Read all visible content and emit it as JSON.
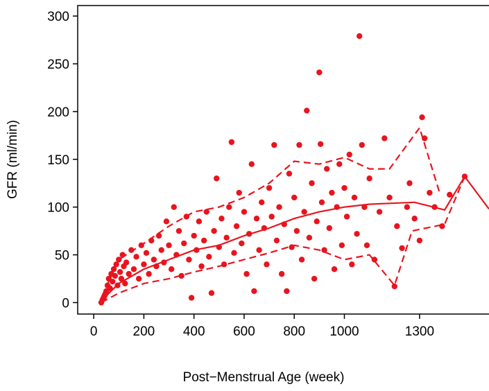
{
  "chart_data": {
    "type": "scatter",
    "xlabel": "Post−Menstrual Age (week)",
    "ylabel": "GFR (ml/min)",
    "color": "#e8141e",
    "xlim": [
      -64,
      1577
    ],
    "ylim": [
      -12,
      311
    ],
    "xticks": [
      0,
      200,
      400,
      600,
      800,
      1000,
      1300
    ],
    "yticks": [
      0,
      50,
      100,
      150,
      200,
      250,
      300
    ],
    "points": {
      "x": [
        30,
        35,
        40,
        45,
        50,
        55,
        60,
        65,
        70,
        75,
        80,
        85,
        90,
        95,
        100,
        105,
        110,
        115,
        120,
        125,
        130,
        140,
        150,
        160,
        170,
        180,
        190,
        200,
        210,
        220,
        230,
        240,
        250,
        260,
        270,
        280,
        290,
        300,
        310,
        320,
        330,
        340,
        350,
        360,
        370,
        380,
        390,
        400,
        410,
        420,
        430,
        440,
        450,
        460,
        470,
        480,
        490,
        500,
        510,
        520,
        530,
        540,
        550,
        560,
        570,
        580,
        590,
        600,
        610,
        620,
        630,
        640,
        650,
        660,
        670,
        680,
        690,
        700,
        710,
        720,
        730,
        740,
        750,
        760,
        770,
        780,
        790,
        800,
        810,
        820,
        830,
        840,
        850,
        860,
        870,
        880,
        890,
        900,
        905,
        910,
        920,
        930,
        940,
        950,
        960,
        970,
        980,
        990,
        1000,
        1010,
        1020,
        1030,
        1040,
        1050,
        1060,
        1070,
        1080,
        1090,
        1100,
        1120,
        1140,
        1160,
        1180,
        1200,
        1210,
        1230,
        1250,
        1260,
        1280,
        1300,
        1310,
        1320,
        1340,
        1360,
        1390,
        1420,
        1480
      ],
      "y": [
        0,
        3,
        5,
        8,
        12,
        18,
        25,
        15,
        30,
        22,
        35,
        28,
        40,
        18,
        45,
        32,
        25,
        50,
        38,
        20,
        42,
        30,
        55,
        35,
        48,
        25,
        60,
        40,
        52,
        30,
        65,
        45,
        38,
        70,
        55,
        42,
        85,
        60,
        35,
        100,
        50,
        75,
        28,
        62,
        90,
        45,
        5,
        70,
        55,
        85,
        38,
        65,
        95,
        48,
        10,
        75,
        130,
        58,
        88,
        40,
        68,
        100,
        168,
        52,
        80,
        115,
        62,
        95,
        30,
        72,
        145,
        12,
        88,
        55,
        105,
        78,
        40,
        120,
        90,
        165,
        65,
        100,
        30,
        82,
        12,
        135,
        58,
        110,
        75,
        165,
        45,
        95,
        201,
        68,
        125,
        25,
        85,
        241,
        166,
        105,
        55,
        140,
        78,
        115,
        35,
        100,
        145,
        60,
        120,
        90,
        155,
        40,
        110,
        72,
        279,
        165,
        100,
        60,
        130,
        45,
        95,
        172,
        110,
        17,
        80,
        57,
        100,
        125,
        88,
        65,
        194,
        172,
        115,
        100,
        80,
        113,
        132
      ]
    },
    "lines": [
      {
        "dash": false,
        "x": [
          30,
          100,
          200,
          300,
          400,
          500,
          600,
          700,
          800,
          900,
          1000,
          1100,
          1280,
          1400,
          1480,
          1577
        ],
        "y": [
          2,
          20,
          35,
          45,
          55,
          60,
          70,
          78,
          88,
          95,
          100,
          103,
          105,
          97,
          132,
          98
        ]
      },
      {
        "dash": true,
        "x": [
          30,
          100,
          200,
          300,
          400,
          500,
          600,
          700,
          800,
          900,
          1000,
          1100,
          1180,
          1300,
          1380
        ],
        "y": [
          5,
          45,
          62,
          80,
          95,
          100,
          110,
          125,
          148,
          145,
          152,
          140,
          140,
          183,
          115
        ]
      },
      {
        "dash": true,
        "x": [
          30,
          100,
          200,
          300,
          400,
          500,
          600,
          700,
          800,
          900,
          1000,
          1100,
          1200,
          1270,
          1400,
          1480
        ],
        "y": [
          0,
          10,
          20,
          25,
          32,
          38,
          45,
          52,
          60,
          55,
          45,
          50,
          18,
          75,
          82,
          132
        ]
      }
    ]
  }
}
